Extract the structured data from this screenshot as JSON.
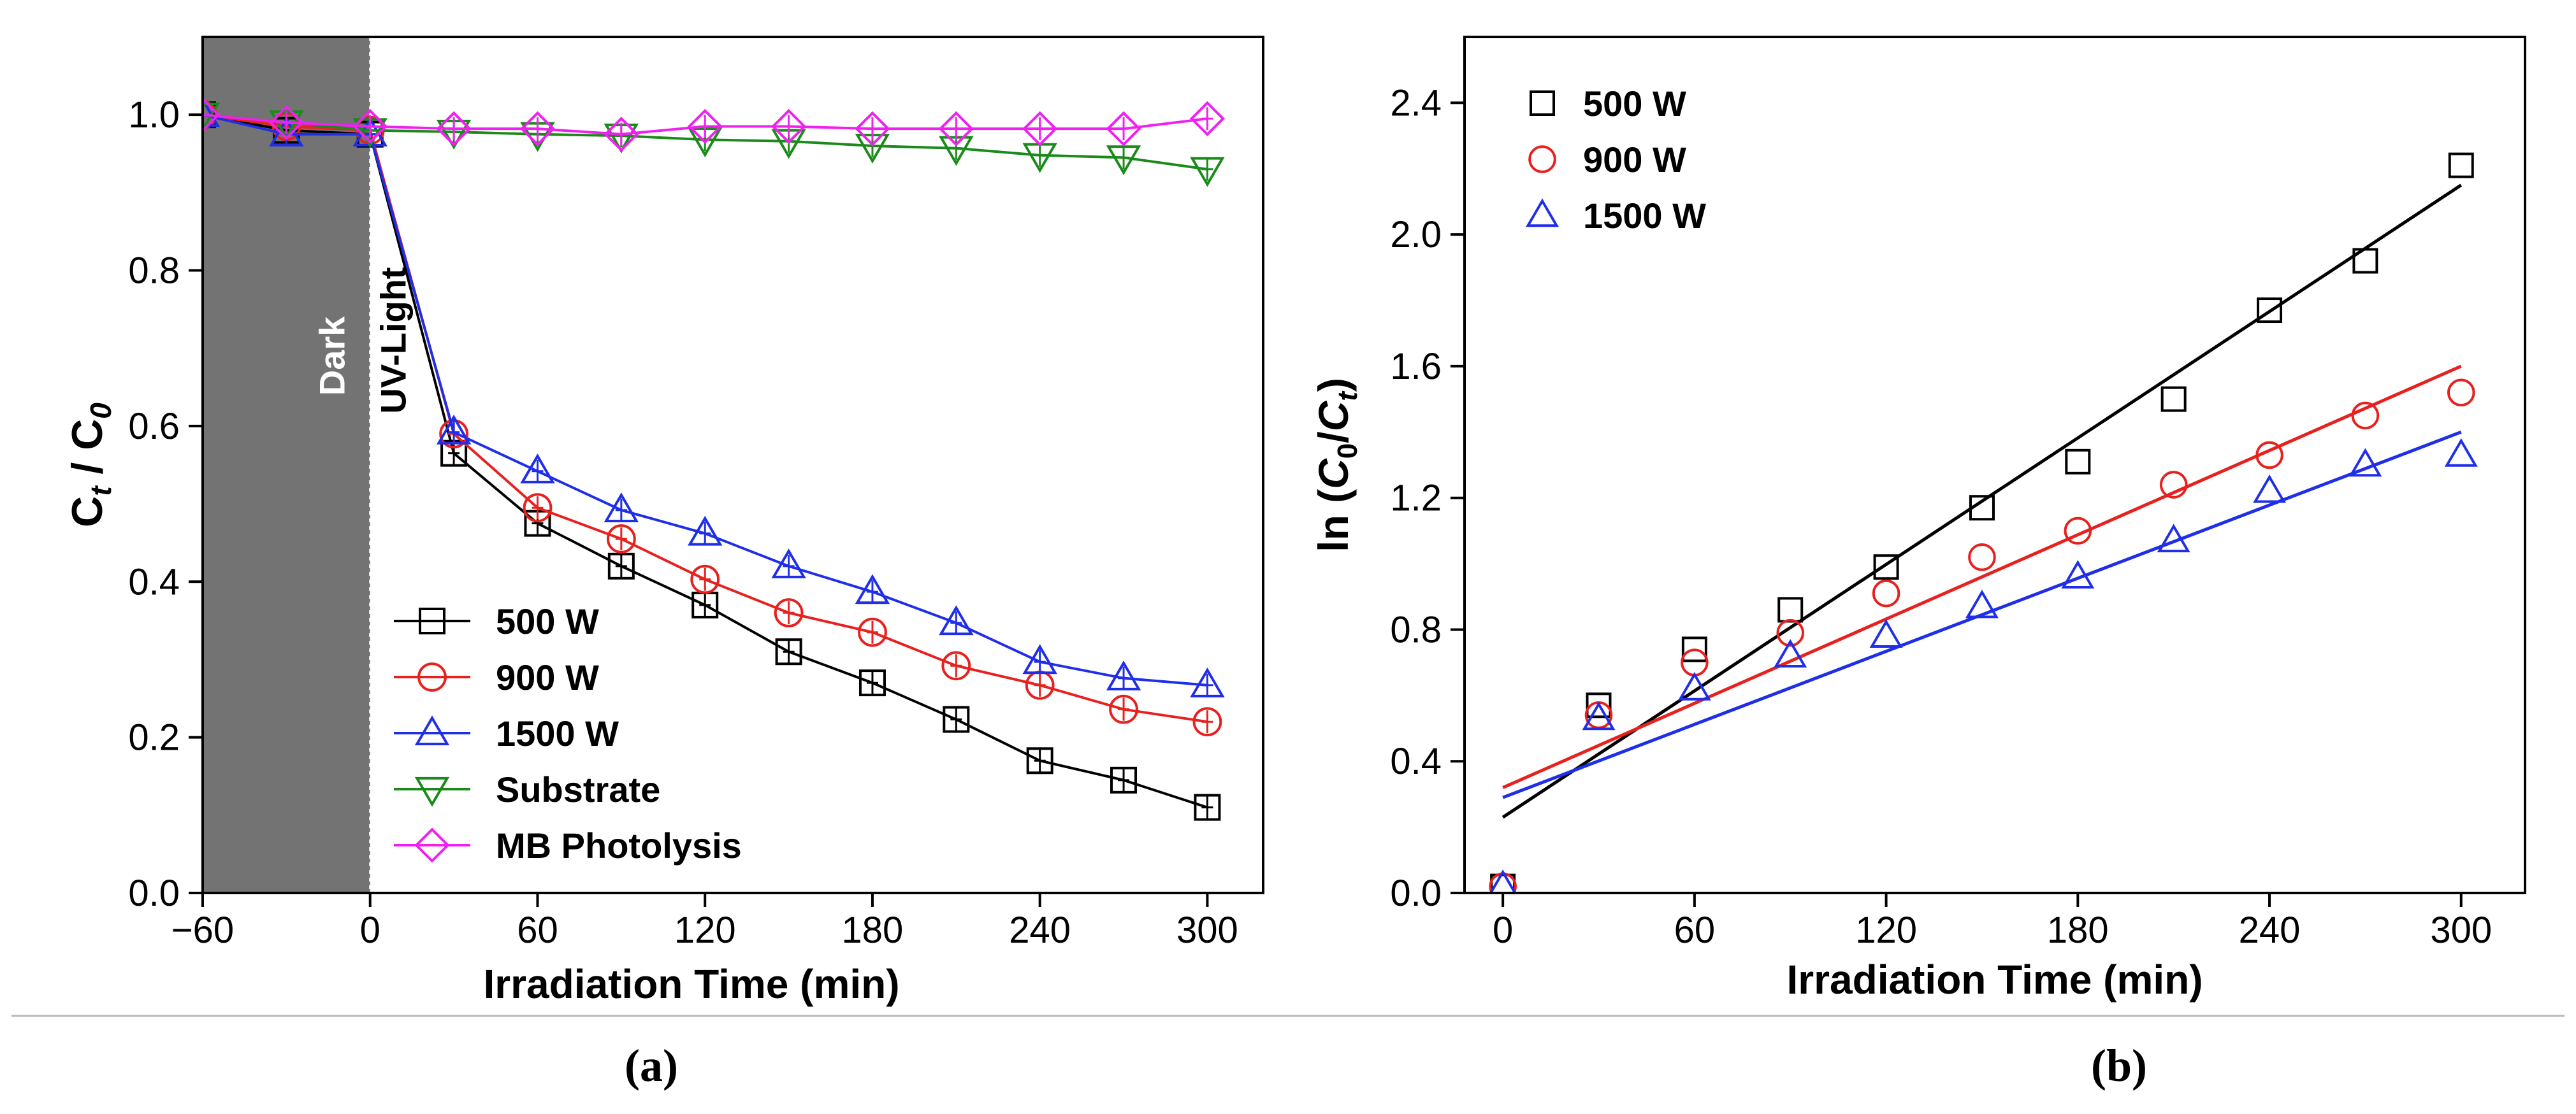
{
  "chart_data": [
    {
      "type": "line",
      "panel": "(a)",
      "xlabel": "Irradiation Time (min)",
      "ylabel": "C_t / C_0",
      "ylabel_main": "C",
      "ylabel_sub1": "t",
      "ylabel_sep": " / C",
      "ylabel_sub2": "0",
      "xlim": [
        -60,
        320
      ],
      "ylim": [
        0,
        1.1
      ],
      "xticks": [
        -60,
        0,
        60,
        120,
        180,
        240,
        300
      ],
      "xtick_labels": [
        "−60",
        "0",
        "60",
        "120",
        "180",
        "240",
        "300"
      ],
      "yticks": [
        0.0,
        0.2,
        0.4,
        0.6,
        0.8,
        1.0
      ],
      "ytick_labels": [
        "0.0",
        "0.2",
        "0.4",
        "0.6",
        "0.8",
        "1.0"
      ],
      "dark_region": [
        -60,
        0
      ],
      "dark_label": "Dark",
      "light_label": "UV-Light",
      "legend_position": "bottom-center",
      "series": [
        {
          "name": "500 W",
          "color": "#000000",
          "marker": "square",
          "x": [
            -60,
            -30,
            0,
            30,
            60,
            90,
            120,
            150,
            180,
            210,
            240,
            270,
            300
          ],
          "y": [
            1.0,
            0.98,
            0.975,
            0.565,
            0.475,
            0.42,
            0.37,
            0.31,
            0.27,
            0.223,
            0.17,
            0.145,
            0.11
          ]
        },
        {
          "name": "900 W",
          "color": "#e8201e",
          "marker": "circle",
          "x": [
            -60,
            -30,
            0,
            30,
            60,
            90,
            120,
            150,
            180,
            210,
            240,
            270,
            300
          ],
          "y": [
            1.0,
            0.985,
            0.98,
            0.59,
            0.495,
            0.455,
            0.403,
            0.36,
            0.335,
            0.292,
            0.267,
            0.236,
            0.22
          ]
        },
        {
          "name": "1500 W",
          "color": "#1f2ee8",
          "marker": "triangle-up",
          "x": [
            -60,
            -30,
            0,
            30,
            60,
            90,
            120,
            150,
            180,
            210,
            240,
            270,
            300
          ],
          "y": [
            1.0,
            0.975,
            0.975,
            0.592,
            0.542,
            0.492,
            0.462,
            0.42,
            0.387,
            0.347,
            0.297,
            0.276,
            0.267
          ]
        },
        {
          "name": "Substrate",
          "color": "#1a8a1a",
          "marker": "triangle-down",
          "x": [
            -60,
            -30,
            0,
            30,
            60,
            90,
            120,
            150,
            180,
            210,
            240,
            270,
            300
          ],
          "y": [
            1.0,
            0.99,
            0.98,
            0.978,
            0.975,
            0.973,
            0.968,
            0.966,
            0.96,
            0.957,
            0.948,
            0.945,
            0.93
          ]
        },
        {
          "name": "MB Photolysis",
          "color": "#f020f0",
          "marker": "diamond",
          "x": [
            -60,
            -30,
            0,
            30,
            60,
            90,
            120,
            150,
            180,
            210,
            240,
            270,
            300
          ],
          "y": [
            1.0,
            0.99,
            0.985,
            0.982,
            0.982,
            0.975,
            0.985,
            0.985,
            0.982,
            0.982,
            0.982,
            0.982,
            0.995
          ]
        }
      ]
    },
    {
      "type": "scatter",
      "panel": "(b)",
      "xlabel": "Irradiation Time (min)",
      "ylabel": "ln (C_0/C_t)",
      "ylabel_pre": "ln (",
      "ylabel_c1": "C",
      "ylabel_sub1": "0",
      "ylabel_slash": "/",
      "ylabel_c2": "C",
      "ylabel_sub2": "t",
      "ylabel_post": ")",
      "xlim": [
        -12,
        320
      ],
      "ylim": [
        0,
        2.6
      ],
      "xticks": [
        0,
        60,
        120,
        180,
        240,
        300
      ],
      "xtick_labels": [
        "0",
        "60",
        "120",
        "180",
        "240",
        "300"
      ],
      "yticks": [
        0.0,
        0.4,
        0.8,
        1.2,
        1.6,
        2.0,
        2.4
      ],
      "ytick_labels": [
        "0.0",
        "0.4",
        "0.8",
        "1.2",
        "1.6",
        "2.0",
        "2.4"
      ],
      "legend_position": "top-left",
      "series": [
        {
          "name": "500 W",
          "color": "#000000",
          "marker": "square",
          "x": [
            0,
            30,
            60,
            90,
            120,
            150,
            180,
            210,
            240,
            270,
            300
          ],
          "y": [
            0.02,
            0.57,
            0.74,
            0.86,
            0.99,
            1.17,
            1.31,
            1.5,
            1.77,
            1.92,
            2.21
          ],
          "fit": [
            [
              0,
              0.23
            ],
            [
              300,
              2.15
            ]
          ]
        },
        {
          "name": "900 W",
          "color": "#e8201e",
          "marker": "circle",
          "x": [
            0,
            30,
            60,
            90,
            120,
            150,
            180,
            210,
            240,
            270,
            300
          ],
          "y": [
            0.02,
            0.54,
            0.7,
            0.79,
            0.91,
            1.02,
            1.1,
            1.24,
            1.33,
            1.45,
            1.52
          ],
          "fit": [
            [
              0,
              0.32
            ],
            [
              300,
              1.6
            ]
          ]
        },
        {
          "name": "1500 W",
          "color": "#1f2ee8",
          "marker": "triangle-up",
          "x": [
            0,
            30,
            60,
            90,
            120,
            150,
            180,
            210,
            240,
            270,
            300
          ],
          "y": [
            0.02,
            0.53,
            0.62,
            0.72,
            0.78,
            0.87,
            0.96,
            1.07,
            1.22,
            1.3,
            1.33
          ],
          "fit": [
            [
              0,
              0.29
            ],
            [
              300,
              1.4
            ]
          ]
        }
      ]
    }
  ]
}
